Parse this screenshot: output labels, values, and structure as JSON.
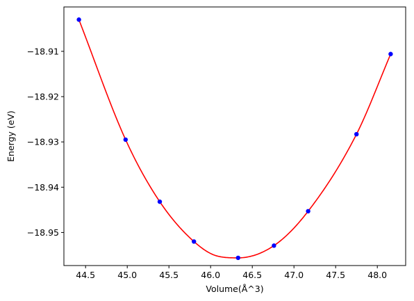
{
  "chart_data": {
    "type": "scatter",
    "xlabel": "Volume(Å^3)",
    "ylabel": "Energy (eV)",
    "xlim": [
      44.24,
      48.34
    ],
    "ylim": [
      -18.9573,
      -18.9002
    ],
    "x_ticks": [
      44.5,
      45.0,
      45.5,
      46.0,
      46.5,
      47.0,
      47.5,
      48.0
    ],
    "x_tick_labels": [
      "44.5",
      "45.0",
      "45.5",
      "46.0",
      "46.5",
      "47.0",
      "47.5",
      "48.0"
    ],
    "y_ticks": [
      -18.91,
      -18.92,
      -18.93,
      -18.94,
      -18.95
    ],
    "y_tick_labels": [
      "−18.91",
      "−18.92",
      "−18.93",
      "−18.94",
      "−18.95"
    ],
    "grid": false,
    "series": [
      {
        "kind": "points",
        "color": "#0000ff",
        "x": [
          44.42,
          44.98,
          45.39,
          45.8,
          46.33,
          46.76,
          47.17,
          47.75,
          48.16
        ],
        "y": [
          -18.903,
          -18.9295,
          -18.9432,
          -18.952,
          -18.9556,
          -18.9529,
          -18.9453,
          -18.9283,
          -18.9106
        ]
      },
      {
        "kind": "line",
        "color": "#ff0000",
        "x": [
          44.42,
          44.98,
          45.39,
          45.8,
          46.08,
          46.33,
          46.76,
          47.17,
          47.75,
          48.16
        ],
        "y": [
          -18.903,
          -18.9295,
          -18.9432,
          -18.952,
          -18.9552,
          -18.9556,
          -18.9529,
          -18.9453,
          -18.9283,
          -18.9106
        ]
      }
    ]
  }
}
